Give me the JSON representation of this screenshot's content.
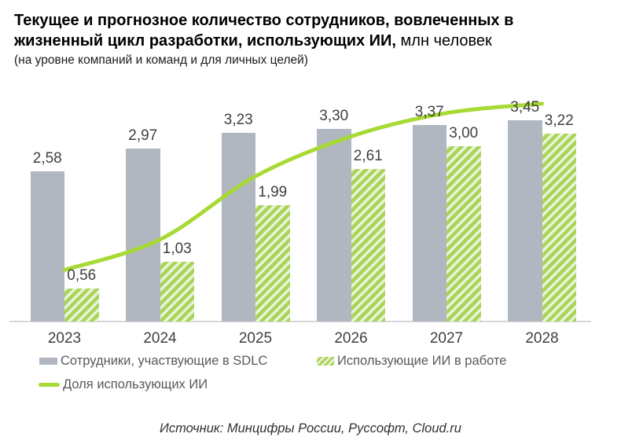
{
  "title": {
    "line1_bold": "Текущее и прогнозное количество сотрудников, вовлеченных в",
    "line2_bold": "жизненный цикл разработки, использующих ИИ,",
    "unit": " млн человек",
    "subtitle": "(на уровне компаний и команд и для личных целей)"
  },
  "chart_data": {
    "type": "combo-bar-line",
    "categories": [
      "2023",
      "2024",
      "2025",
      "2026",
      "2027",
      "2028"
    ],
    "series": [
      {
        "name": "Сотрудники, участвующие в SDLC",
        "type": "bar",
        "style": "solid",
        "values": [
          2.58,
          2.97,
          3.23,
          3.3,
          3.37,
          3.45
        ],
        "labels": [
          "2,58",
          "2,97",
          "3,23",
          "3,30",
          "3,37",
          "3,45"
        ]
      },
      {
        "name": "Использующие ИИ в работе",
        "type": "bar",
        "style": "diagonal-hatch",
        "values": [
          0.56,
          1.03,
          1.99,
          2.61,
          3.0,
          3.22
        ],
        "labels": [
          "0,56",
          "1,03",
          "1,99",
          "2,61",
          "3,00",
          "3,22"
        ]
      },
      {
        "name": "Доля использующих ИИ",
        "type": "line",
        "axis": "secondary-hidden-percent",
        "values_pct_estimated": [
          22,
          35,
          62,
          79,
          89,
          93
        ],
        "data_labels_visible": false
      }
    ],
    "unit": "млн человек",
    "value_axis_visible": false,
    "gridlines": false,
    "legend_position": "bottom"
  },
  "legend": {
    "items": [
      {
        "label": "Сотрудники, участвующие в SDLC"
      },
      {
        "label": "Использующие ИИ в работе"
      },
      {
        "label": "Доля использующих ИИ"
      }
    ]
  },
  "source": "Источник: Минцифры России, Руссофт, Cloud.ru",
  "colors": {
    "bar_gray": "#B1B7C1",
    "hatch_bg": "#EAF3D3",
    "hatch_stripe": "#A9D45C",
    "line_green": "#A8DA36",
    "axis_line": "#D8D8D8",
    "data_label": "#3F3F3F",
    "axis_label": "#3F3F3F",
    "legend_text": "#595959",
    "title_text": "#000000"
  }
}
